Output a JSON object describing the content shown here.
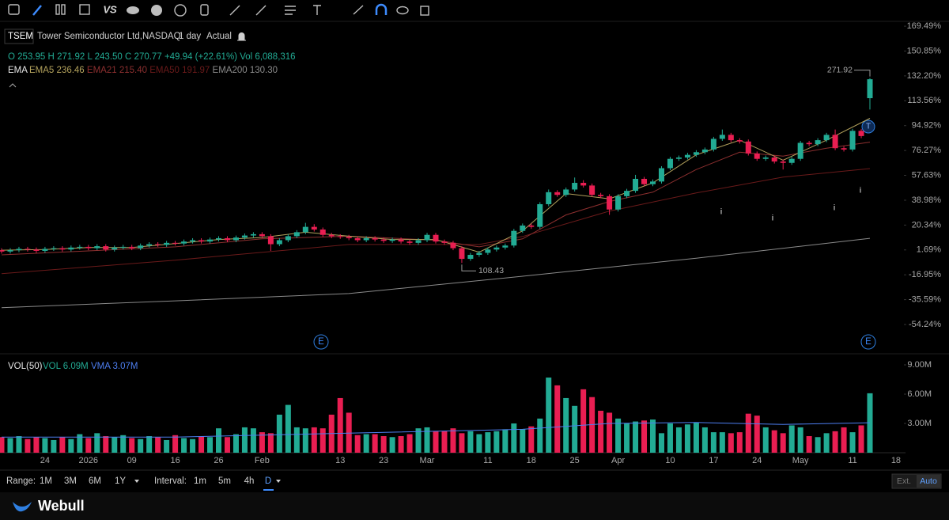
{
  "toolbar": {
    "compare": "VS"
  },
  "header": {
    "symbol": "TSEM",
    "name": "Tower Semiconductor Ltd,NASDAQ",
    "interval": "1 day",
    "mode": "Actual"
  },
  "quote": [
    {
      "label": "O",
      "value": "253.95"
    },
    {
      "label": "H",
      "value": "271.92"
    },
    {
      "label": "L",
      "value": "243.50"
    },
    {
      "label": "C",
      "value": "270.77"
    }
  ],
  "change": "+49.94 (+22.61%)",
  "volume_quote": {
    "label": "Vol",
    "value": "6,088,316"
  },
  "ema_title": "EMA",
  "events": {
    "earnings": "E",
    "today": "T",
    "info": "i"
  },
  "chart_data": [
    {
      "type": "candlestick",
      "categories": [
        null,
        null,
        null,
        null,
        null,
        "24",
        null,
        null,
        null,
        null,
        "2026",
        null,
        null,
        null,
        null,
        "09",
        null,
        null,
        null,
        null,
        "16",
        null,
        null,
        null,
        null,
        "26",
        null,
        null,
        null,
        null,
        "Feb",
        null,
        null,
        null,
        null,
        null,
        null,
        null,
        null,
        "13",
        null,
        null,
        null,
        null,
        "23",
        null,
        null,
        null,
        null,
        "Mar",
        null,
        null,
        null,
        null,
        null,
        null,
        "11",
        null,
        null,
        null,
        null,
        "18",
        null,
        null,
        null,
        null,
        "25",
        null,
        null,
        null,
        null,
        "Apr",
        null,
        null,
        null,
        null,
        null,
        "10",
        null,
        null,
        null,
        null,
        "17",
        null,
        null,
        null,
        null,
        "24",
        null,
        null,
        null,
        null,
        "May",
        null,
        null,
        null,
        null,
        null,
        "11",
        null,
        null,
        null,
        null,
        "18"
      ],
      "open": [
        1.5,
        0.5,
        1.5,
        2.5,
        2.0,
        1.0,
        2.5,
        3.0,
        2.0,
        3.5,
        4.0,
        3.0,
        4.5,
        2.0,
        3.5,
        4.0,
        3.0,
        5.0,
        6.0,
        5.5,
        7.0,
        6.5,
        8.0,
        9.0,
        8.0,
        9.5,
        10.5,
        9.0,
        11.0,
        12.5,
        13.5,
        12.0,
        6.0,
        9.0,
        12.0,
        15.0,
        19.0,
        17.0,
        13.0,
        12.0,
        11.5,
        10.5,
        9.0,
        10.5,
        9.5,
        8.5,
        9.5,
        8.0,
        7.0,
        9.0,
        13.0,
        8.0,
        7.0,
        3.0,
        -5.0,
        -2.0,
        -0.5,
        2.0,
        3.5,
        5.0,
        16.0,
        20.0,
        19.0,
        36.0,
        45.0,
        43.0,
        47.0,
        52.0,
        50.0,
        43.0,
        42.0,
        32.0,
        42.0,
        46.0,
        55.0,
        51.0,
        53.0,
        63.0,
        70.0,
        71.0,
        73.0,
        75.0,
        77.0,
        85.0,
        88.0,
        84.0,
        83.0,
        74.0,
        70.0,
        71.0,
        68.0,
        67.0,
        70.0,
        82.0,
        81.0,
        84.0,
        88.0,
        78.0,
        77.0,
        91.0,
        115.5,
        null,
        null,
        null
      ],
      "high": [
        3.0,
        3.0,
        4.0,
        4.0,
        3.5,
        4.0,
        4.5,
        4.5,
        5.0,
        5.5,
        5.5,
        6.0,
        6.0,
        5.0,
        5.5,
        5.5,
        6.5,
        7.5,
        7.5,
        8.5,
        8.5,
        9.5,
        10.5,
        10.5,
        11.0,
        12.0,
        12.0,
        12.5,
        14.0,
        15.0,
        15.0,
        13.5,
        10.5,
        13.5,
        16.5,
        22.0,
        21.0,
        18.5,
        14.5,
        13.5,
        13.0,
        12.0,
        12.0,
        12.0,
        11.0,
        11.0,
        11.0,
        9.5,
        10.5,
        14.5,
        14.5,
        9.5,
        8.5,
        4.5,
        -0.5,
        1.0,
        3.5,
        5.0,
        6.5,
        17.5,
        21.5,
        21.5,
        37.5,
        47.0,
        46.5,
        48.5,
        56.0,
        54.0,
        51.5,
        44.5,
        43.5,
        43.5,
        47.5,
        58.0,
        56.5,
        54.5,
        64.5,
        71.5,
        72.5,
        74.5,
        76.5,
        78.5,
        86.5,
        92.0,
        89.5,
        85.5,
        84.5,
        75.5,
        72.5,
        72.5,
        69.5,
        71.5,
        83.5,
        83.5,
        85.5,
        89.5,
        92.0,
        79.5,
        92.5,
        92.5,
        130.6,
        null,
        null,
        null
      ],
      "low": [
        -1.0,
        -1.0,
        0.0,
        0.5,
        -0.5,
        -0.5,
        1.0,
        0.5,
        0.5,
        2.0,
        1.5,
        1.5,
        0.5,
        0.5,
        2.0,
        1.5,
        1.5,
        3.5,
        4.0,
        4.0,
        5.0,
        5.0,
        6.5,
        6.5,
        6.5,
        8.0,
        7.5,
        7.5,
        9.5,
        11.0,
        10.5,
        1.0,
        4.5,
        7.5,
        10.5,
        13.5,
        15.5,
        11.5,
        10.5,
        10.0,
        9.0,
        7.5,
        7.5,
        8.0,
        7.0,
        7.0,
        6.5,
        5.5,
        5.5,
        7.5,
        6.5,
        5.5,
        1.5,
        -8.1,
        -6.5,
        -3.5,
        -2.0,
        0.5,
        2.0,
        3.5,
        14.5,
        17.5,
        17.5,
        34.5,
        41.5,
        41.5,
        45.5,
        48.5,
        41.5,
        40.5,
        28.0,
        30.5,
        40.5,
        44.5,
        49.5,
        49.5,
        51.5,
        61.5,
        68.5,
        69.5,
        71.5,
        73.5,
        75.5,
        83.5,
        82.5,
        81.5,
        72.5,
        68.5,
        68.5,
        66.5,
        62.0,
        65.5,
        68.5,
        79.5,
        79.5,
        82.5,
        76.5,
        75.5,
        75.5,
        85.5,
        107.0,
        null,
        null,
        null
      ],
      "close": [
        0.5,
        1.5,
        2.5,
        2.0,
        1.0,
        2.5,
        3.0,
        2.0,
        3.5,
        4.0,
        3.0,
        4.5,
        2.0,
        3.5,
        4.0,
        3.0,
        5.0,
        6.0,
        5.5,
        7.0,
        6.5,
        8.0,
        9.0,
        8.0,
        9.5,
        10.5,
        9.0,
        11.0,
        12.5,
        13.5,
        12.0,
        6.0,
        9.0,
        12.0,
        15.0,
        19.0,
        17.0,
        13.0,
        12.0,
        11.5,
        10.5,
        9.0,
        10.5,
        9.5,
        8.5,
        9.5,
        8.0,
        7.0,
        9.0,
        13.0,
        8.0,
        7.0,
        3.0,
        -5.0,
        -2.0,
        -0.5,
        2.0,
        3.5,
        5.0,
        16.0,
        20.0,
        19.0,
        36.0,
        45.0,
        43.0,
        47.0,
        52.0,
        50.0,
        43.0,
        42.0,
        32.0,
        42.0,
        46.0,
        55.0,
        51.0,
        53.0,
        63.0,
        70.0,
        71.0,
        73.0,
        75.0,
        77.0,
        85.0,
        88.0,
        84.0,
        83.0,
        74.0,
        70.0,
        71.0,
        68.0,
        67.0,
        70.0,
        82.0,
        81.0,
        84.0,
        88.0,
        78.0,
        77.0,
        91.0,
        87.1,
        129.7,
        null,
        null,
        null
      ],
      "up_color": "#22ab94",
      "down_color": "#e91e52",
      "ylim": [
        -75,
        172.5
      ],
      "yticks": [
        {
          "value": 169.49,
          "label": "169.49%"
        },
        {
          "value": 150.85,
          "label": "150.85%"
        },
        {
          "value": 132.2,
          "label": "132.20%"
        },
        {
          "value": 113.56,
          "label": "113.56%"
        },
        {
          "value": 94.92,
          "label": "94.92%"
        },
        {
          "value": 76.27,
          "label": "76.27%"
        },
        {
          "value": 57.63,
          "label": "57.63%"
        },
        {
          "value": 38.98,
          "label": "38.98%"
        },
        {
          "value": 20.34,
          "label": "20.34%"
        },
        {
          "value": 1.69,
          "label": "1.69%"
        },
        {
          "value": -16.95,
          "label": "-16.95%"
        },
        {
          "value": -35.59,
          "label": "-35.59%"
        },
        {
          "value": -54.24,
          "label": "-54.24%"
        }
      ],
      "grid": false,
      "series": [
        {
          "name": "EMA5",
          "current": "236.46",
          "color": "#b3a25c",
          "x": [
            0,
            5,
            10,
            15,
            20,
            25,
            30,
            35,
            40,
            45,
            50,
            55,
            60,
            65,
            70,
            75,
            80,
            85,
            90,
            95,
            100
          ],
          "values": [
            1.5,
            2,
            3.5,
            3.5,
            6.5,
            9.5,
            11,
            15,
            12,
            9.5,
            9.5,
            0,
            16,
            44,
            40,
            52,
            73,
            84,
            69,
            84,
            100.4
          ]
        },
        {
          "name": "EMA21",
          "current": "215.40",
          "color": "#8c2f2f",
          "x": [
            0,
            20,
            30,
            40,
            50,
            55,
            60,
            65,
            70,
            75,
            80,
            85,
            90,
            95,
            100
          ],
          "values": [
            -2,
            4,
            10,
            12,
            9,
            4,
            10,
            28,
            38,
            45,
            62,
            75,
            72,
            78,
            82.5
          ]
        },
        {
          "name": "EMA50",
          "current": "191.97",
          "color": "#6a1a1a",
          "x": [
            0,
            20,
            40,
            55,
            60,
            70,
            80,
            90,
            100
          ],
          "values": [
            -16.1,
            -6,
            5.8,
            5.8,
            11.8,
            30.8,
            44.4,
            56.3,
            62.7
          ]
        },
        {
          "name": "EMA200",
          "current": "130.30",
          "color": "#8a8a8a",
          "x": [
            0,
            20,
            40,
            60,
            80,
            100
          ],
          "values": [
            -41.6,
            -36.5,
            -31.0,
            -18.0,
            -4.5,
            10.4
          ]
        }
      ],
      "annotations": {
        "high": "271.92",
        "low": "108.43"
      }
    },
    {
      "type": "bar",
      "title": "VOL(50)",
      "values": [
        1.6,
        1.5,
        1.7,
        1.4,
        1.6,
        1.5,
        1.3,
        1.6,
        1.4,
        1.9,
        1.5,
        2.0,
        1.7,
        1.6,
        1.8,
        1.5,
        1.4,
        1.7,
        1.6,
        1.3,
        1.8,
        1.5,
        1.4,
        1.7,
        1.6,
        2.5,
        1.6,
        1.9,
        2.6,
        2.5,
        2.1,
        2.0,
        3.9,
        4.9,
        2.6,
        2.5,
        2.6,
        2.5,
        3.9,
        5.6,
        4.1,
        1.8,
        1.9,
        1.9,
        1.7,
        1.6,
        1.7,
        1.9,
        2.5,
        2.6,
        2.2,
        2.2,
        2.5,
        2.0,
        2.2,
        1.9,
        2.1,
        2.2,
        2.4,
        3.0,
        2.4,
        2.7,
        3.5,
        7.7,
        6.9,
        5.6,
        4.8,
        6.5,
        5.7,
        4.3,
        4.1,
        3.5,
        3.0,
        3.2,
        3.3,
        3.4,
        2.0,
        3.0,
        2.6,
        2.9,
        3.1,
        2.6,
        2.1,
        2.1,
        2.0,
        2.1,
        4.0,
        3.8,
        2.6,
        2.3,
        2.0,
        2.8,
        2.6,
        1.7,
        1.6,
        2.0,
        2.2,
        2.6,
        2.1,
        2.8,
        6.09,
        null,
        null,
        null
      ],
      "ylim": [
        0,
        9.73
      ],
      "yticks": [
        {
          "value": 3,
          "label": "3.00M"
        },
        {
          "value": 6,
          "label": "6.00M"
        },
        {
          "value": 9,
          "label": "9.00M"
        }
      ],
      "series": [
        {
          "name": "VMA",
          "color": "#4d7ef0",
          "x": [
            0,
            20,
            40,
            60,
            70,
            80,
            90,
            100
          ],
          "values": [
            1.6,
            1.6,
            2.0,
            2.4,
            3.0,
            3.1,
            2.9,
            3.07
          ]
        }
      ],
      "legend": {
        "vol": "VOL 6.09M",
        "vma": "VMA 3.07M"
      }
    }
  ],
  "bottom_bar": {
    "range_label": "Range:",
    "ranges": [
      "1M",
      "3M",
      "6M",
      "1Y"
    ],
    "interval_label": "Interval:",
    "intervals": [
      "1m",
      "5m",
      "4h",
      "D"
    ],
    "ext": "Ext.",
    "auto": "Auto"
  },
  "brand": "Webull"
}
